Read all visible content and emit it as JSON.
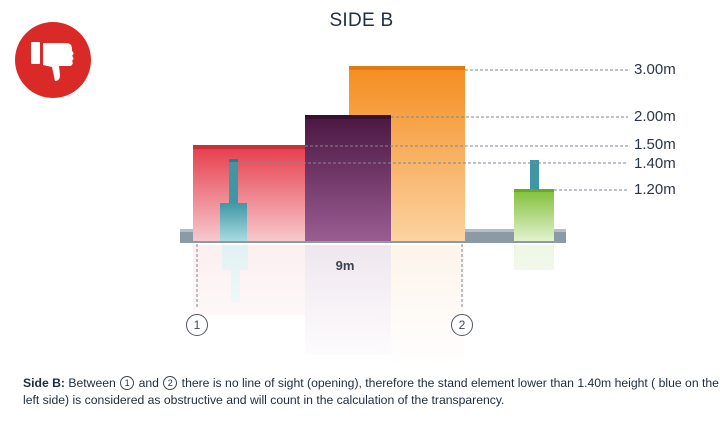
{
  "title": "SIDE B",
  "icon": "thumbs-down-icon",
  "colors": {
    "icon_red": "#d92a28",
    "red_block": "#e94a55",
    "purple_block": "#5a1d4e",
    "orange_block": "#f59a2e",
    "blue_element": "#4aa9b8",
    "green_element": "#8cc63f",
    "ground": "#8c9aa6"
  },
  "levels": [
    {
      "label": "3.00m",
      "value": 3.0
    },
    {
      "label": "2.00m",
      "value": 2.0
    },
    {
      "label": "1.50m",
      "value": 1.5
    },
    {
      "label": "1.40m",
      "value": 1.4
    },
    {
      "label": "1.20m",
      "value": 1.2
    }
  ],
  "span_label": "9m",
  "markers": [
    "1",
    "2"
  ],
  "caption": {
    "lead": "Side B:",
    "part1": " Between ",
    "circle1": "1",
    "part2": " and ",
    "circle2": "2",
    "part3": " there is no line of sight (opening), therefore the stand element lower than 1.40m height ( blue on the left side) is considered as obstructive and will count in the calculation of the transparency."
  }
}
